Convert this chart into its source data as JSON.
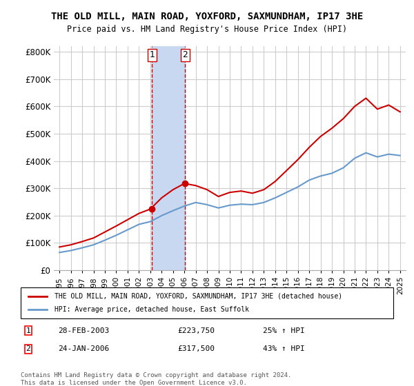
{
  "title": "THE OLD MILL, MAIN ROAD, YOXFORD, SAXMUNDHAM, IP17 3HE",
  "subtitle": "Price paid vs. HM Land Registry's House Price Index (HPI)",
  "legend_line1": "THE OLD MILL, MAIN ROAD, YOXFORD, SAXMUNDHAM, IP17 3HE (detached house)",
  "legend_line2": "HPI: Average price, detached house, East Suffolk",
  "footer": "Contains HM Land Registry data © Crown copyright and database right 2024.\nThis data is licensed under the Open Government Licence v3.0.",
  "purchases": [
    {
      "label": "1",
      "date": "28-FEB-2003",
      "price": "£223,750",
      "hpi": "25% ↑ HPI",
      "year": 2003.15
    },
    {
      "label": "2",
      "date": "24-JAN-2006",
      "price": "£317,500",
      "hpi": "43% ↑ HPI",
      "year": 2006.07
    }
  ],
  "hpi_years": [
    1995,
    1996,
    1997,
    1998,
    1999,
    2000,
    2001,
    2002,
    2003,
    2004,
    2005,
    2006,
    2007,
    2008,
    2009,
    2010,
    2011,
    2012,
    2013,
    2014,
    2015,
    2016,
    2017,
    2018,
    2019,
    2020,
    2021,
    2022,
    2023,
    2024,
    2025
  ],
  "hpi_values": [
    65000,
    72000,
    82000,
    93000,
    110000,
    128000,
    148000,
    168000,
    178000,
    200000,
    218000,
    235000,
    248000,
    240000,
    228000,
    238000,
    242000,
    240000,
    248000,
    265000,
    285000,
    305000,
    330000,
    345000,
    355000,
    375000,
    410000,
    430000,
    415000,
    425000,
    420000
  ],
  "red_years": [
    1995,
    1996,
    1997,
    1998,
    1999,
    2000,
    2001,
    2002,
    2003,
    2004,
    2005,
    2006,
    2007,
    2008,
    2009,
    2010,
    2011,
    2012,
    2013,
    2014,
    2015,
    2016,
    2017,
    2018,
    2019,
    2020,
    2021,
    2022,
    2023,
    2024,
    2025
  ],
  "red_values": [
    85000,
    93000,
    105000,
    118000,
    140000,
    162000,
    185000,
    208000,
    223750,
    265000,
    295000,
    317500,
    310000,
    295000,
    270000,
    285000,
    290000,
    282000,
    295000,
    325000,
    365000,
    405000,
    450000,
    490000,
    520000,
    555000,
    600000,
    630000,
    590000,
    605000,
    580000
  ],
  "purchase1_x": 2003.15,
  "purchase1_y": 223750,
  "purchase2_x": 2006.07,
  "purchase2_y": 317500,
  "shade_x1": 2003.15,
  "shade_x2": 2006.07,
  "ylim": [
    0,
    820000
  ],
  "xlim": [
    1994.5,
    2025.5
  ],
  "red_color": "#cc0000",
  "blue_color": "#6699cc",
  "shade_color": "#c8d8f0",
  "grid_color": "#cccccc",
  "bg_color": "#ffffff"
}
